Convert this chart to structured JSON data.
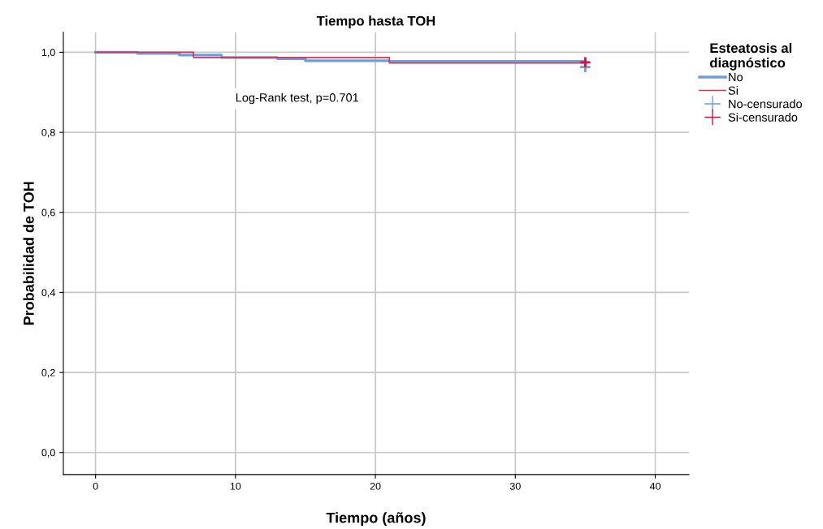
{
  "chart_data": {
    "type": "step",
    "title": "Tiempo hasta TOH",
    "xlabel": "Tiempo (años)",
    "ylabel": "Probabilidad de TOH",
    "legend_title": "Esteatosis al\ndiagnóstico",
    "series": [
      {
        "name": "No",
        "color": "#6a9fe0",
        "x": [
          0,
          3,
          6,
          9,
          13,
          15,
          21,
          35
        ],
        "values": [
          1.0,
          0.997,
          0.993,
          0.987,
          0.984,
          0.979,
          0.977,
          0.977
        ]
      },
      {
        "name": "Si",
        "color": "#e0334f",
        "x": [
          0,
          7,
          21,
          35
        ],
        "values": [
          1.0,
          0.987,
          0.973,
          0.973
        ]
      },
      {
        "name": "No-censurado",
        "type": "scatter",
        "marker": "cross",
        "color": "#6a9fe0",
        "x": [
          35
        ],
        "values": [
          0.963
        ]
      },
      {
        "name": "Si-censurado",
        "type": "scatter",
        "marker": "cross",
        "color": "#d8133f",
        "x": [
          35
        ],
        "values": [
          0.975
        ]
      }
    ],
    "annotations": [
      "Log-Rank test, p=0.701"
    ],
    "xlim": [
      -2.3,
      42.4
    ],
    "ylim": [
      -0.055,
      1.05
    ],
    "xticks": [
      0,
      10,
      20,
      30,
      40
    ],
    "yticks": [
      {
        "value": 0,
        "label": "0,0"
      },
      {
        "value": 0.2,
        "label": "0,2"
      },
      {
        "value": 0.4,
        "label": "0,4"
      },
      {
        "value": 0.6,
        "label": "0,6"
      },
      {
        "value": 0.8,
        "label": "0,8"
      },
      {
        "value": 1.0,
        "label": "1,0"
      }
    ],
    "grid": true,
    "legend": "right"
  }
}
